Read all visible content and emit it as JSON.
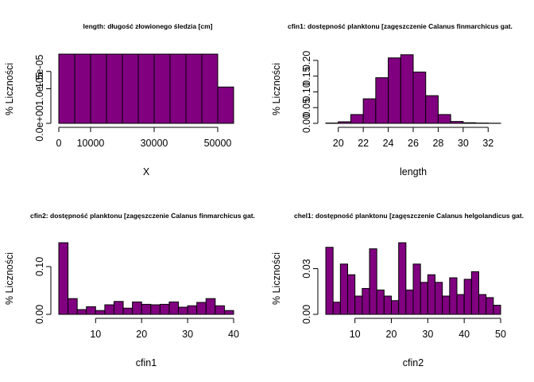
{
  "chart_data": [
    {
      "type": "bar",
      "title": "length: długość złowionego śledzia [cm]",
      "xlabel": "X",
      "ylabel": "% Liczności",
      "xlim": [
        0,
        55000
      ],
      "ylim": [
        0,
        2e-05
      ],
      "xticks": [
        0,
        10000,
        30000,
        50000
      ],
      "xtick_labels": [
        "0",
        "10000",
        "30000",
        "50000"
      ],
      "yticks": [
        0,
        1e-05,
        1.5e-05
      ],
      "ytick_labels": [
        "0.0e+00",
        "1.0e-05",
        "1.5e-05"
      ],
      "bin_edges": [
        0,
        5000,
        10000,
        15000,
        20000,
        25000,
        30000,
        35000,
        40000,
        45000,
        50000,
        55000
      ],
      "values": [
        2e-05,
        2e-05,
        2e-05,
        2e-05,
        2e-05,
        2e-05,
        2e-05,
        2e-05,
        2e-05,
        2e-05,
        1.05e-05
      ]
    },
    {
      "type": "bar",
      "title": "cfin1: dostępność planktonu [zagęszczenie Calanus finmarchicus gat.",
      "xlabel": "length",
      "ylabel": "% Liczności",
      "xlim": [
        19,
        33
      ],
      "ylim": [
        0,
        0.22
      ],
      "xticks": [
        20,
        22,
        24,
        26,
        28,
        30,
        32
      ],
      "xtick_labels": [
        "20",
        "22",
        "24",
        "26",
        "28",
        "30",
        "32"
      ],
      "yticks": [
        0.0,
        0.05,
        0.1,
        0.15,
        0.2
      ],
      "ytick_labels": [
        "0.00",
        "0.05",
        "0.10",
        "0.15",
        "0.20"
      ],
      "bin_edges": [
        19,
        20,
        21,
        22,
        23,
        24,
        25,
        26,
        27,
        28,
        29,
        30,
        31,
        32,
        33
      ],
      "values": [
        0.001,
        0.005,
        0.028,
        0.078,
        0.145,
        0.208,
        0.218,
        0.163,
        0.088,
        0.028,
        0.006,
        0.002,
        0.001,
        0.0005
      ]
    },
    {
      "type": "bar",
      "title": "cfin2: dostępność planktonu [zagęszczenie Calanus finmarchicus gat.",
      "xlabel": "cfin1",
      "ylabel": "% Liczności",
      "xlim": [
        2,
        40
      ],
      "ylim": [
        0,
        0.15
      ],
      "xticks": [
        10,
        20,
        30,
        40
      ],
      "xtick_labels": [
        "10",
        "20",
        "30",
        "40"
      ],
      "yticks": [
        0.0,
        0.1
      ],
      "ytick_labels": [
        "0.00",
        "0.10"
      ],
      "bin_edges": [
        2,
        4,
        6,
        8,
        10,
        12,
        14,
        16,
        18,
        20,
        22,
        24,
        26,
        28,
        30,
        32,
        34,
        36,
        38,
        40
      ],
      "values": [
        0.15,
        0.033,
        0.01,
        0.016,
        0.008,
        0.02,
        0.027,
        0.013,
        0.026,
        0.021,
        0.02,
        0.021,
        0.026,
        0.015,
        0.018,
        0.025,
        0.033,
        0.018,
        0.008
      ]
    },
    {
      "type": "bar",
      "title": "chel1: dostępność planktonu [zagęszczenie Calanus helgolandicus gat.",
      "xlabel": "cfin2",
      "ylabel": "% Liczności",
      "xlim": [
        2,
        50
      ],
      "ylim": [
        0,
        0.047
      ],
      "xticks": [
        10,
        20,
        30,
        40,
        50
      ],
      "xtick_labels": [
        "10",
        "20",
        "30",
        "40",
        "50"
      ],
      "yticks": [
        0.0,
        0.03
      ],
      "ytick_labels": [
        "0.00",
        "0.03"
      ],
      "bin_edges": [
        2,
        4,
        6,
        8,
        10,
        12,
        14,
        16,
        18,
        20,
        22,
        24,
        26,
        28,
        30,
        32,
        34,
        36,
        38,
        40,
        42,
        44,
        46,
        48,
        50
      ],
      "values": [
        0.044,
        0.008,
        0.033,
        0.026,
        0.012,
        0.017,
        0.043,
        0.016,
        0.012,
        0.009,
        0.047,
        0.016,
        0.033,
        0.021,
        0.026,
        0.021,
        0.012,
        0.024,
        0.013,
        0.023,
        0.028,
        0.013,
        0.011,
        0.006
      ]
    }
  ]
}
